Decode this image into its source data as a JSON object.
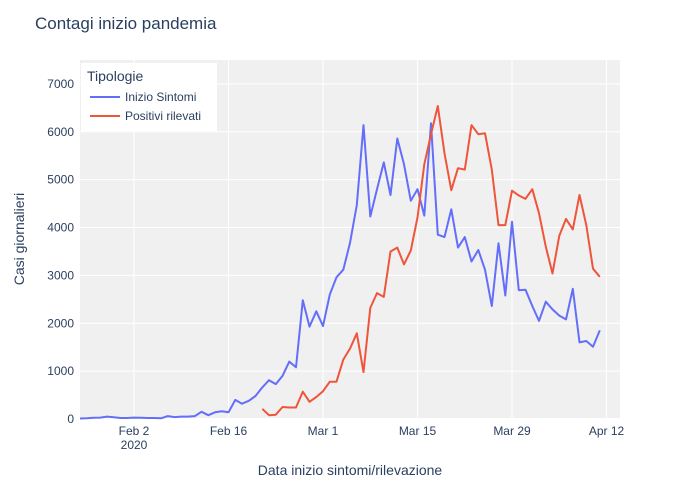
{
  "chart_data": {
    "type": "line",
    "title": "Contagi inizio pandemia",
    "xlabel": "Data inizio sintomi/rilevazione",
    "ylabel": "Casi giornalieri",
    "x_range": [
      "2020-01-25",
      "2020-04-14"
    ],
    "ylim": [
      0,
      7500
    ],
    "y_ticks": [
      0,
      1000,
      2000,
      3000,
      4000,
      5000,
      6000,
      7000
    ],
    "x_ticks": [
      {
        "date": "2020-02-02",
        "label": "Feb 2",
        "sublabel": "2020"
      },
      {
        "date": "2020-02-16",
        "label": "Feb 16",
        "sublabel": ""
      },
      {
        "date": "2020-03-01",
        "label": "Mar 1",
        "sublabel": ""
      },
      {
        "date": "2020-03-15",
        "label": "Mar 15",
        "sublabel": ""
      },
      {
        "date": "2020-03-29",
        "label": "Mar 29",
        "sublabel": ""
      },
      {
        "date": "2020-04-12",
        "label": "Apr 12",
        "sublabel": ""
      }
    ],
    "grid": true,
    "legend": {
      "title": "Tipologie",
      "position": "top-left"
    },
    "series": [
      {
        "name": "Inizio Sintomi",
        "color": "#636efa",
        "start_date": "2020-01-25",
        "values": [
          10,
          15,
          25,
          30,
          50,
          35,
          20,
          20,
          30,
          25,
          20,
          20,
          15,
          60,
          40,
          50,
          50,
          60,
          150,
          80,
          140,
          160,
          140,
          400,
          320,
          380,
          480,
          660,
          810,
          730,
          900,
          1200,
          1080,
          2480,
          1930,
          2250,
          1940,
          2600,
          2960,
          3120,
          3680,
          4470,
          6140,
          4230,
          4800,
          5360,
          4680,
          5860,
          5320,
          4560,
          4800,
          4250,
          6180,
          3850,
          3800,
          4380,
          3580,
          3800,
          3290,
          3530,
          3120,
          2360,
          3670,
          2580,
          4120,
          2690,
          2700,
          2360,
          2050,
          2450,
          2290,
          2160,
          2080,
          2720,
          1600,
          1630,
          1510,
          1850
        ]
      },
      {
        "name": "Positivi rilevati",
        "color": "#ef553b",
        "start_date": "2020-02-21",
        "values": [
          210,
          80,
          90,
          250,
          240,
          240,
          570,
          360,
          460,
          580,
          780,
          780,
          1240,
          1470,
          1790,
          980,
          2320,
          2630,
          2550,
          3500,
          3580,
          3230,
          3520,
          4210,
          5320,
          5950,
          6540,
          5550,
          4780,
          5240,
          5210,
          6140,
          5950,
          5970,
          5210,
          4050,
          4050,
          4770,
          4670,
          4600,
          4800,
          4300,
          3600,
          3040,
          3830,
          4180,
          3960,
          4680,
          4050,
          3140,
          2970
        ]
      }
    ]
  }
}
